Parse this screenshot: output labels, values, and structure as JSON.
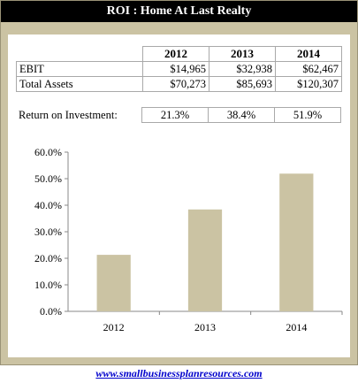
{
  "title": "ROI  : Home At Last Realty",
  "table": {
    "years": [
      "2012",
      "2013",
      "2014"
    ],
    "rows": [
      {
        "label": "EBIT",
        "values": [
          "$14,965",
          "$32,938",
          "$62,467"
        ]
      },
      {
        "label": "Total Assets",
        "values": [
          "$70,273",
          "$85,693",
          "$120,307"
        ]
      }
    ]
  },
  "roi_row": {
    "label": "Return on Investment:",
    "values": [
      "21.3%",
      "38.4%",
      "51.9%"
    ]
  },
  "chart_data": {
    "type": "bar",
    "categories": [
      "2012",
      "2013",
      "2014"
    ],
    "values": [
      21.3,
      38.4,
      51.9
    ],
    "ylim": [
      0,
      60
    ],
    "yticks": [
      "0.0%",
      "10.0%",
      "20.0%",
      "30.0%",
      "40.0%",
      "50.0%",
      "60.0%"
    ],
    "grid": false,
    "legend": "none",
    "bar_color": "#cbc3a3"
  },
  "footer_link": "www.smallbusinessplanresources.com",
  "colors": {
    "frame": "#cbc3a3",
    "title_bg": "#000000",
    "link": "#0000cc"
  }
}
